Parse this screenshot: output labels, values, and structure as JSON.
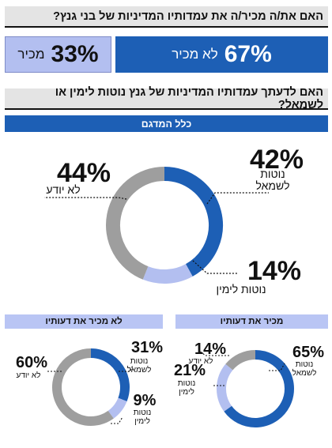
{
  "question1": "האם את/ה מכיר/ה את עמדותיו המדיניות של בני גנץ?",
  "familiarity": {
    "know": {
      "pct": "67%",
      "label": "לא מכיר"
    },
    "dont_know": {
      "pct": "33%",
      "label": "מכיר"
    }
  },
  "question2": "האם לדעתך עמדותיו המדיניות של גנץ נוטות לימין או לשמאל?",
  "overall_title": "כלל המדגם",
  "know_title": "מכיר את דעותיו",
  "dontknow_title": "לא מכיר את דעותיו",
  "colors": {
    "left": "#1d5fb5",
    "right": "#b3bff0",
    "unknown": "#9e9e9e",
    "bar_bg": "#e4e4e4"
  },
  "chart_data": [
    {
      "type": "pie",
      "title": "כלל המדגם",
      "labels": [
        "נוטות לשמאל",
        "נוטות לימין",
        "לא יודע"
      ],
      "values": [
        42,
        14,
        44
      ],
      "value_labels": [
        "42%",
        "14%",
        "44%"
      ]
    },
    {
      "type": "pie",
      "title": "מכיר את דעותיו",
      "labels": [
        "נוטות לשמאל",
        "נוטות לימין",
        "לא יודע"
      ],
      "values": [
        65,
        21,
        14
      ],
      "value_labels": [
        "65%",
        "21%",
        "14%"
      ]
    },
    {
      "type": "pie",
      "title": "לא מכיר את דעותיו",
      "labels": [
        "נוטות לשמאל",
        "נוטות לימין",
        "לא יודע"
      ],
      "values": [
        31,
        9,
        60
      ],
      "value_labels": [
        "31%",
        "9%",
        "60%"
      ]
    }
  ]
}
